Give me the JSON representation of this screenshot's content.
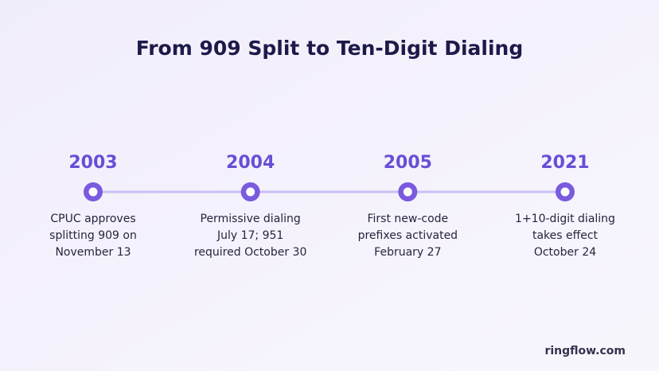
{
  "header": {
    "title": "From 909 Split to Ten-Digit Dialing"
  },
  "events": [
    {
      "year": "2003",
      "lines": [
        "CPUC approves",
        "splitting 909 on",
        "November 13"
      ]
    },
    {
      "year": "2004",
      "lines": [
        "Permissive dialing",
        "July 17; 951",
        "required October 30"
      ]
    },
    {
      "year": "2005",
      "lines": [
        "First new-code",
        "prefixes activated",
        "February 27"
      ]
    },
    {
      "year": "2021",
      "lines": [
        "1+10-digit dialing",
        "takes effect",
        "October 24"
      ]
    }
  ],
  "footer": {
    "brand": "ringflow.com"
  }
}
